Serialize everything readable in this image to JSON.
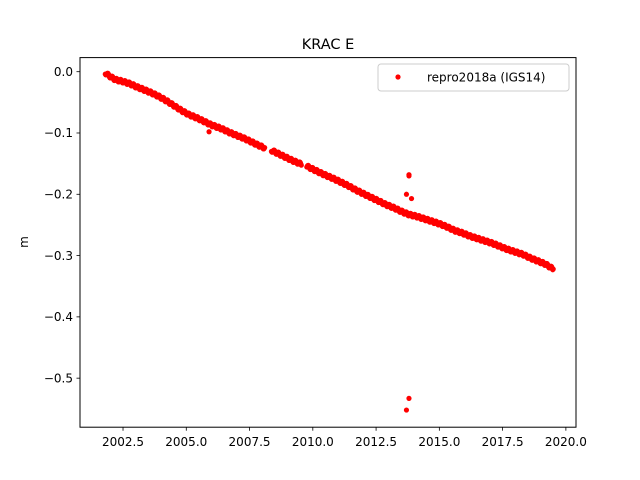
{
  "chart_data": {
    "type": "scatter",
    "title": "KRAC E",
    "xlabel": "",
    "ylabel": "m",
    "xlim": [
      2000.8,
      2020.4
    ],
    "ylim": [
      -0.58,
      0.023
    ],
    "xticks": [
      2002.5,
      2005.0,
      2007.5,
      2010.0,
      2012.5,
      2015.0,
      2017.5,
      2020.0
    ],
    "xtick_labels": [
      "2002.5",
      "2005.0",
      "2007.5",
      "2010.0",
      "2012.5",
      "2015.0",
      "2017.5",
      "2020.0"
    ],
    "yticks": [
      0.0,
      -0.1,
      -0.2,
      -0.3,
      -0.4,
      -0.5
    ],
    "ytick_labels": [
      "0.0",
      "−0.1",
      "−0.2",
      "−0.3",
      "−0.4",
      "−0.5"
    ],
    "legend_position": "top-right",
    "grid": false,
    "series": [
      {
        "name": "repro2018a (IGS14)",
        "color": "#ff0000",
        "marker": "circle",
        "x": [
          2001.8,
          2002.0,
          2002.2,
          2002.5,
          2002.8,
          2003.0,
          2003.3,
          2003.6,
          2003.9,
          2004.2,
          2004.5,
          2004.8,
          2005.1,
          2005.4,
          2005.7,
          2006.0,
          2006.4,
          2006.7,
          2007.0,
          2007.3,
          2007.6,
          2007.9,
          2008.4,
          2008.8,
          2009.2,
          2009.8,
          2010.1,
          2010.4,
          2010.8,
          2011.1,
          2011.4,
          2011.7,
          2012.0,
          2012.3,
          2012.6,
          2012.9,
          2013.2,
          2013.5,
          2013.8,
          2014.1,
          2014.4,
          2014.7,
          2015.0,
          2015.3,
          2015.6,
          2015.9,
          2016.2,
          2016.5,
          2016.8,
          2017.1,
          2017.4,
          2017.7,
          2018.0,
          2018.3,
          2018.6,
          2018.9,
          2019.2,
          2019.5
        ],
        "y": [
          -0.002,
          -0.008,
          -0.013,
          -0.016,
          -0.02,
          -0.024,
          -0.029,
          -0.034,
          -0.04,
          -0.047,
          -0.055,
          -0.063,
          -0.07,
          -0.075,
          -0.081,
          -0.087,
          -0.093,
          -0.099,
          -0.104,
          -0.109,
          -0.115,
          -0.121,
          -0.129,
          -0.137,
          -0.145,
          -0.155,
          -0.161,
          -0.167,
          -0.174,
          -0.18,
          -0.186,
          -0.193,
          -0.199,
          -0.205,
          -0.211,
          -0.217,
          -0.222,
          -0.228,
          -0.233,
          -0.236,
          -0.24,
          -0.244,
          -0.248,
          -0.253,
          -0.259,
          -0.263,
          -0.268,
          -0.272,
          -0.276,
          -0.28,
          -0.285,
          -0.29,
          -0.294,
          -0.298,
          -0.304,
          -0.309,
          -0.314,
          -0.322
        ]
      }
    ],
    "outliers": {
      "x": [
        2005.9,
        2013.7,
        2013.8,
        2013.8,
        2013.9,
        2013.8,
        2013.7
      ],
      "y": [
        -0.098,
        -0.2,
        -0.168,
        -0.17,
        -0.207,
        -0.533,
        -0.552
      ]
    }
  }
}
